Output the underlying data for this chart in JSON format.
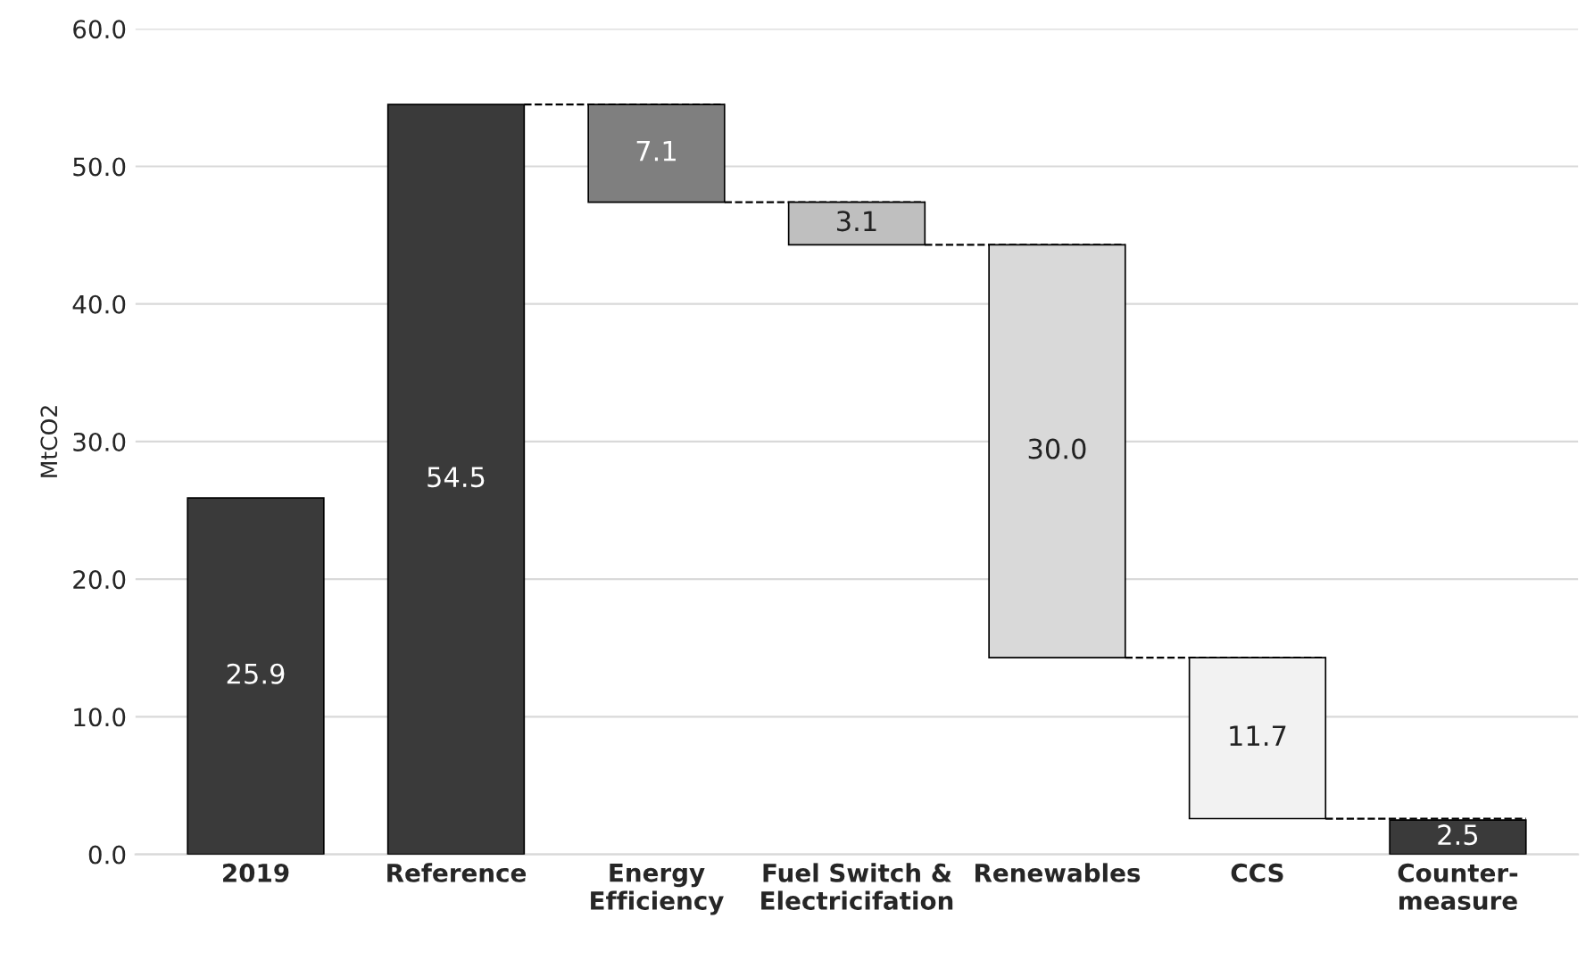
{
  "chart_data": {
    "type": "bar",
    "ylabel": "MtCO2",
    "categories": [
      "2019",
      "Reference",
      "Energy\nEfficiency",
      "Fuel Switch &\nElectricifation",
      "Renewables",
      "CCS",
      "Counter-\nmeasure"
    ],
    "values": [
      25.9,
      54.5,
      7.1,
      3.1,
      30.0,
      11.7,
      2.5
    ],
    "base": [
      0,
      0,
      47.4,
      44.3,
      14.3,
      2.6,
      0
    ],
    "colors": [
      "#3a3a3a",
      "#3a3a3a",
      "#7f7f7f",
      "#bfbfbf",
      "#d9d9d9",
      "#f2f2f2",
      "#3a3a3a"
    ],
    "value_labels": [
      "25.9",
      "54.5",
      "7.1",
      "3.1",
      "30.0",
      "11.7",
      "2.5"
    ],
    "ylim": [
      0,
      60
    ],
    "yticks": [
      {
        "value": 0,
        "label": "0.0"
      },
      {
        "value": 10,
        "label": "10.0"
      },
      {
        "value": 20,
        "label": "20.0"
      },
      {
        "value": 30,
        "label": "30.0"
      },
      {
        "value": 40,
        "label": "40.0"
      },
      {
        "value": 50,
        "label": "50.0"
      },
      {
        "value": 60,
        "label": "60.0"
      }
    ],
    "grid": "y",
    "legend": false
  }
}
